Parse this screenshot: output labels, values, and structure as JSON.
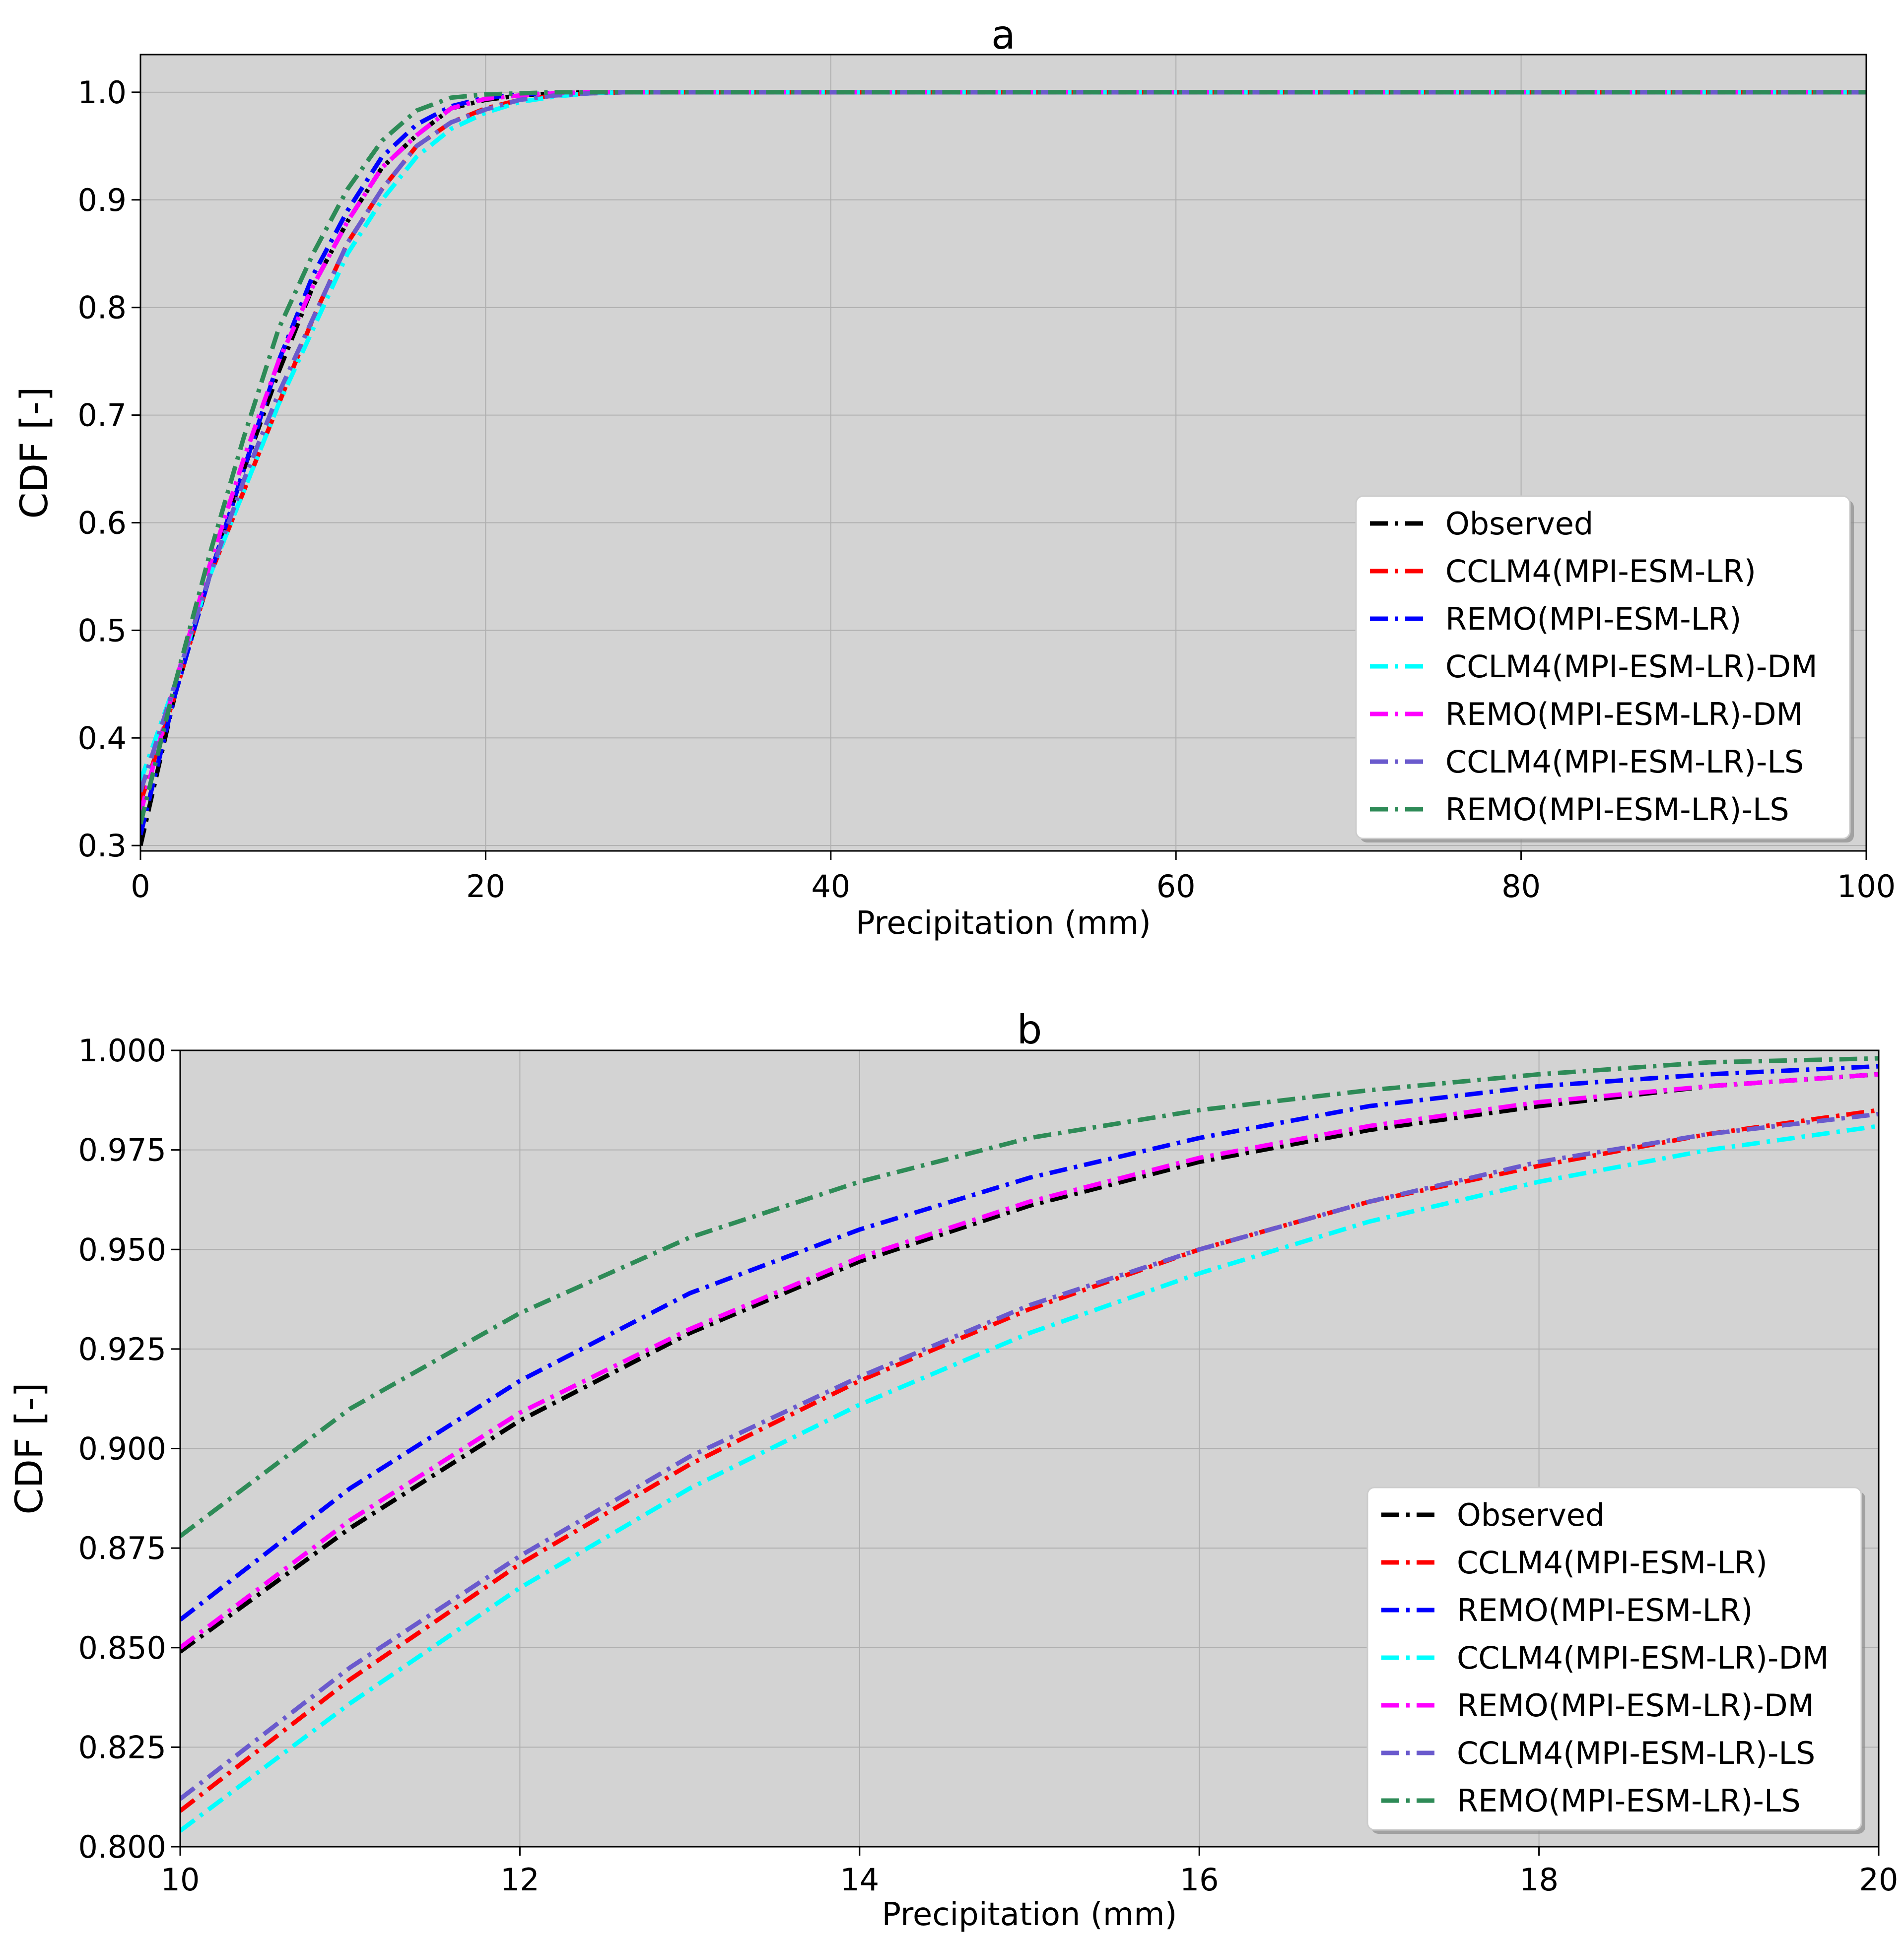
{
  "colors": {
    "plot_bg": "#d3d3d3",
    "grid": "#b0b0b0",
    "Observed": "#000000",
    "CCLM4(MPI-ESM-LR)": "#ff0000",
    "REMO(MPI-ESM-LR)": "#0000ff",
    "CCLM4(MPI-ESM-LR)-DM": "#00ffff",
    "REMO(MPI-ESM-LR)-DM": "#ff00ff",
    "CCLM4(MPI-ESM-LR)-LS": "#6a5acd",
    "REMO(MPI-ESM-LR)-LS": "#2e8b57"
  },
  "chart_data": [
    {
      "id": "a",
      "type": "line",
      "title": "a",
      "xlabel": "Precipitation (mm)",
      "ylabel": "CDF [-]",
      "xlim": [
        0,
        100
      ],
      "ylim": [
        0.295,
        1.035
      ],
      "xticks": [
        0,
        20,
        40,
        60,
        80,
        100
      ],
      "xtick_labels": [
        "0",
        "20",
        "40",
        "60",
        "80",
        "100"
      ],
      "yticks": [
        0.3,
        0.4,
        0.5,
        0.6,
        0.7,
        0.8,
        0.9,
        1.0
      ],
      "ytick_labels": [
        "0.3",
        "0.4",
        "0.5",
        "0.6",
        "0.7",
        "0.8",
        "0.9",
        "1.0"
      ],
      "grid": true,
      "legend_position": "lower-right",
      "x": [
        0,
        2,
        4,
        6,
        8,
        10,
        12,
        14,
        16,
        18,
        20,
        22,
        24,
        26,
        28,
        30,
        40,
        50,
        60,
        70,
        80,
        90,
        100
      ],
      "series": [
        {
          "name": "Observed",
          "values": [
            0.3,
            0.44,
            0.55,
            0.65,
            0.74,
            0.82,
            0.88,
            0.93,
            0.96,
            0.985,
            0.993,
            0.997,
            0.999,
            1.0,
            1.0,
            1.0,
            1.0,
            1.0,
            1.0,
            1.0,
            1.0,
            1.0,
            1.0
          ]
        },
        {
          "name": "CCLM4(MPI-ESM-LR)",
          "values": [
            0.34,
            0.44,
            0.55,
            0.63,
            0.71,
            0.79,
            0.86,
            0.91,
            0.95,
            0.972,
            0.985,
            0.993,
            0.997,
            0.999,
            1.0,
            1.0,
            1.0,
            1.0,
            1.0,
            1.0,
            1.0,
            1.0,
            1.0
          ]
        },
        {
          "name": "REMO(MPI-ESM-LR)",
          "values": [
            0.31,
            0.44,
            0.55,
            0.65,
            0.75,
            0.83,
            0.89,
            0.94,
            0.97,
            0.987,
            0.995,
            0.998,
            0.999,
            1.0,
            1.0,
            1.0,
            1.0,
            1.0,
            1.0,
            1.0,
            1.0,
            1.0,
            1.0
          ]
        },
        {
          "name": "CCLM4(MPI-ESM-LR)-DM",
          "values": [
            0.36,
            0.45,
            0.55,
            0.63,
            0.71,
            0.78,
            0.85,
            0.9,
            0.94,
            0.966,
            0.981,
            0.991,
            0.996,
            0.999,
            1.0,
            1.0,
            1.0,
            1.0,
            1.0,
            1.0,
            1.0,
            1.0,
            1.0
          ]
        },
        {
          "name": "REMO(MPI-ESM-LR)-DM",
          "values": [
            0.33,
            0.45,
            0.56,
            0.66,
            0.75,
            0.82,
            0.88,
            0.93,
            0.96,
            0.985,
            0.994,
            0.997,
            0.999,
            1.0,
            1.0,
            1.0,
            1.0,
            1.0,
            1.0,
            1.0,
            1.0,
            1.0,
            1.0
          ]
        },
        {
          "name": "CCLM4(MPI-ESM-LR)-LS",
          "values": [
            0.35,
            0.45,
            0.55,
            0.64,
            0.72,
            0.79,
            0.86,
            0.91,
            0.95,
            0.972,
            0.984,
            0.993,
            0.997,
            0.999,
            1.0,
            1.0,
            1.0,
            1.0,
            1.0,
            1.0,
            1.0,
            1.0,
            1.0
          ]
        },
        {
          "name": "REMO(MPI-ESM-LR)-LS",
          "values": [
            0.32,
            0.45,
            0.57,
            0.68,
            0.78,
            0.85,
            0.91,
            0.955,
            0.983,
            0.995,
            0.998,
            0.999,
            1.0,
            1.0,
            1.0,
            1.0,
            1.0,
            1.0,
            1.0,
            1.0,
            1.0,
            1.0,
            1.0
          ]
        }
      ]
    },
    {
      "id": "b",
      "type": "line",
      "title": "b",
      "xlabel": "Precipitation (mm)",
      "ylabel": "CDF [-]",
      "xlim": [
        10,
        20
      ],
      "ylim": [
        0.8,
        1.0
      ],
      "xticks": [
        10,
        12,
        14,
        16,
        18,
        20
      ],
      "xtick_labels": [
        "10",
        "12",
        "14",
        "16",
        "18",
        "20"
      ],
      "yticks": [
        0.8,
        0.825,
        0.85,
        0.875,
        0.9,
        0.925,
        0.95,
        0.975,
        1.0
      ],
      "ytick_labels": [
        "0.800",
        "0.825",
        "0.850",
        "0.875",
        "0.900",
        "0.925",
        "0.950",
        "0.975",
        "1.000"
      ],
      "grid": true,
      "legend_position": "lower-right",
      "x": [
        10,
        11,
        12,
        13,
        14,
        15,
        16,
        17,
        18,
        19,
        20
      ],
      "series": [
        {
          "name": "Observed",
          "values": [
            0.849,
            0.88,
            0.907,
            0.929,
            0.947,
            0.961,
            0.972,
            0.98,
            0.986,
            0.991,
            0.994
          ]
        },
        {
          "name": "CCLM4(MPI-ESM-LR)",
          "values": [
            0.809,
            0.842,
            0.871,
            0.896,
            0.917,
            0.935,
            0.95,
            0.962,
            0.971,
            0.979,
            0.985
          ]
        },
        {
          "name": "REMO(MPI-ESM-LR)",
          "values": [
            0.857,
            0.89,
            0.917,
            0.939,
            0.955,
            0.968,
            0.978,
            0.986,
            0.991,
            0.994,
            0.996
          ]
        },
        {
          "name": "CCLM4(MPI-ESM-LR)-DM",
          "values": [
            0.804,
            0.836,
            0.865,
            0.89,
            0.911,
            0.929,
            0.944,
            0.957,
            0.967,
            0.975,
            0.981
          ]
        },
        {
          "name": "REMO(MPI-ESM-LR)-DM",
          "values": [
            0.85,
            0.882,
            0.909,
            0.93,
            0.948,
            0.962,
            0.973,
            0.981,
            0.987,
            0.991,
            0.994
          ]
        },
        {
          "name": "CCLM4(MPI-ESM-LR)-LS",
          "values": [
            0.812,
            0.845,
            0.873,
            0.898,
            0.918,
            0.936,
            0.95,
            0.962,
            0.972,
            0.979,
            0.984
          ]
        },
        {
          "name": "REMO(MPI-ESM-LR)-LS",
          "values": [
            0.878,
            0.91,
            0.934,
            0.953,
            0.967,
            0.978,
            0.985,
            0.99,
            0.994,
            0.997,
            0.998
          ]
        }
      ]
    }
  ]
}
